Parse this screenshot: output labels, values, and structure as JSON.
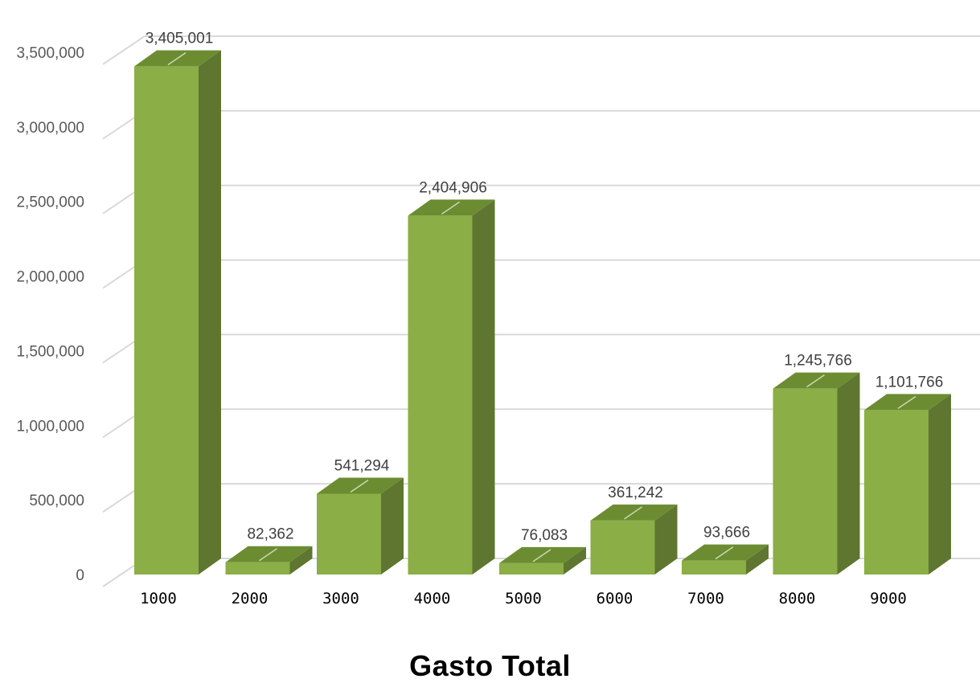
{
  "chart_data": {
    "type": "bar",
    "title": "Gasto Total",
    "xlabel": "",
    "ylabel": "",
    "categories": [
      "1000",
      "2000",
      "3000",
      "4000",
      "5000",
      "6000",
      "7000",
      "8000",
      "9000"
    ],
    "values": [
      3405001,
      82362,
      541294,
      2404906,
      76083,
      361242,
      93666,
      1245766,
      1101766
    ],
    "data_labels": [
      "3,405,001",
      "82,362",
      "541,294",
      "2,404,906",
      "76,083",
      "361,242",
      "93,666",
      "1,245,766",
      "1,101,766"
    ],
    "yticks": [
      "0",
      "500,000",
      "1,000,000",
      "1,500,000",
      "2,000,000",
      "2,500,000",
      "3,000,000",
      "3,500,000"
    ],
    "ylim": [
      0,
      3500000
    ],
    "style": "3d-column",
    "grid": true,
    "legend": "none",
    "colors": {
      "bar_front": "#8bae46",
      "bar_top": "#6c8c32",
      "bar_side": "#5e7630",
      "grid": "#d9d9d9"
    }
  }
}
